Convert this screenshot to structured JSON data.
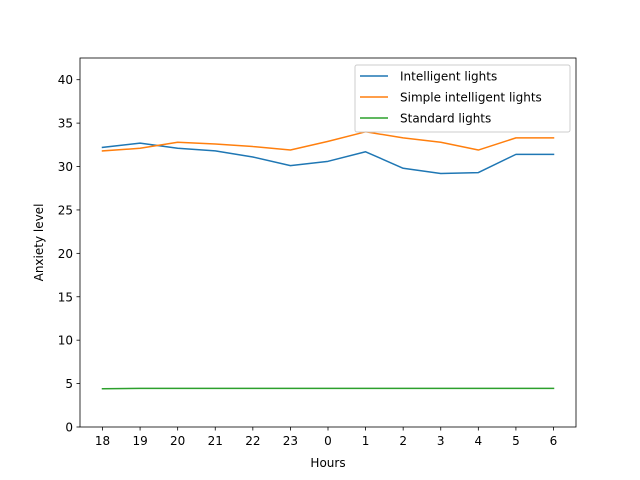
{
  "chart_data": {
    "type": "line",
    "title": "",
    "xlabel": "Hours",
    "ylabel": "Anxiety level",
    "categories": [
      "18",
      "19",
      "20",
      "21",
      "22",
      "23",
      "0",
      "1",
      "2",
      "3",
      "4",
      "5",
      "6"
    ],
    "ylim": [
      0,
      42.5
    ],
    "yticks": [
      0,
      5,
      10,
      15,
      20,
      25,
      30,
      35,
      40
    ],
    "grid": false,
    "legend_position": "top-right",
    "series": [
      {
        "name": "Intelligent lights",
        "color": "#1f77b4",
        "values": [
          32.2,
          32.7,
          32.1,
          31.8,
          31.1,
          30.1,
          30.6,
          31.7,
          29.8,
          29.2,
          29.3,
          31.4,
          31.4
        ]
      },
      {
        "name": "Simple intelligent lights",
        "color": "#ff7f0e",
        "values": [
          31.8,
          32.1,
          32.8,
          32.6,
          32.3,
          31.9,
          32.9,
          34.0,
          33.3,
          32.8,
          31.9,
          33.3,
          33.3
        ]
      },
      {
        "name": "Standard lights",
        "color": "#2ca02c",
        "values": [
          4.4,
          4.45,
          4.45,
          4.45,
          4.45,
          4.45,
          4.45,
          4.45,
          4.45,
          4.45,
          4.45,
          4.45,
          4.45
        ]
      }
    ]
  }
}
